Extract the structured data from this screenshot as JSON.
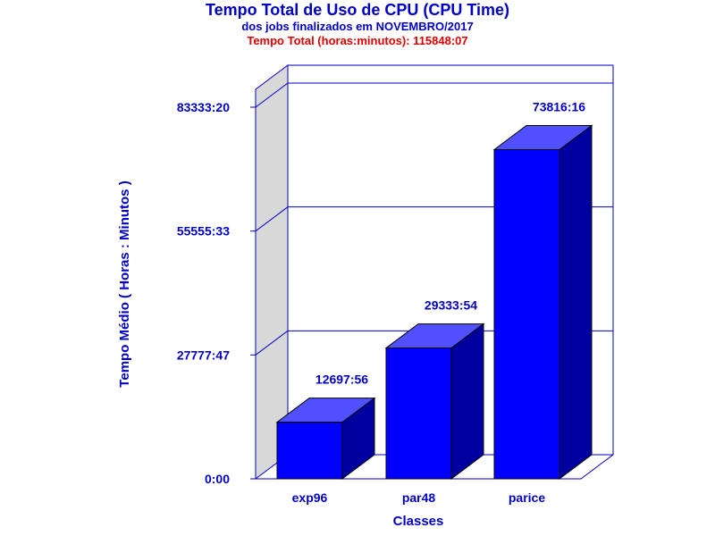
{
  "chart_data": {
    "type": "bar",
    "title": "Tempo Total de Uso de CPU (CPU Time)",
    "subtitle": "dos jobs finalizados em NOVEMBRO/2017",
    "total_label": "Tempo Total (horas:minutos): 115848:07",
    "xlabel": "Classes",
    "ylabel": "Tempo Médio ( Horas : Minutos )",
    "categories": [
      "exp96",
      "par48",
      "parice"
    ],
    "values": [
      12697.93,
      29333.9,
      73816.27
    ],
    "value_labels": [
      "12697:56",
      "29333:54",
      "73816:16"
    ],
    "yticks": [
      0,
      27777.78,
      55555.55,
      83333.33
    ],
    "ytick_labels": [
      "0:00",
      "27777:47",
      "55555:33",
      "83333:20"
    ],
    "ylim": [
      0,
      83333.33
    ],
    "grid": true
  },
  "colors": {
    "text": "#0000c8",
    "total": "#e00000",
    "axis": "#0000c8",
    "bar_front": "#0000ff",
    "bar_top": "#5050ff",
    "bar_side": "#0000a0",
    "wall": "#d8d8d8"
  }
}
